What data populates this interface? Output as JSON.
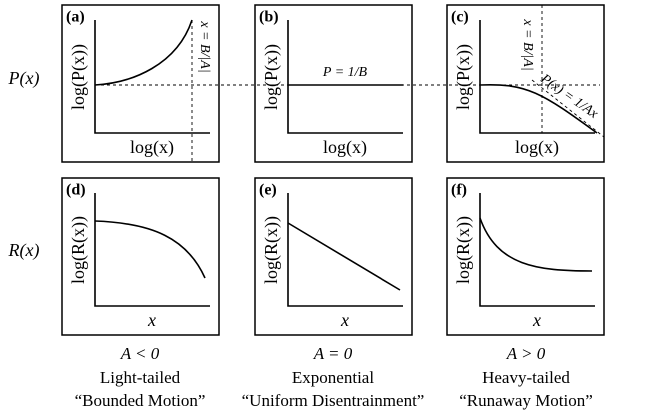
{
  "row_labels": [
    "P(x)",
    "R(x)"
  ],
  "panels": [
    {
      "label": "(a)",
      "ylabel": "log(P(x))",
      "xlabel": "log(x)",
      "annotations": [
        "x = B/|A|"
      ]
    },
    {
      "label": "(b)",
      "ylabel": "log(P(x))",
      "xlabel": "log(x)",
      "annotations": [
        "P = 1/B"
      ]
    },
    {
      "label": "(c)",
      "ylabel": "log(P(x))",
      "xlabel": "log(x)",
      "annotations": [
        "x = B/|A|",
        "P(x) = 1/Ax"
      ]
    },
    {
      "label": "(d)",
      "ylabel": "log(R(x))",
      "xlabel": "x",
      "annotations": []
    },
    {
      "label": "(e)",
      "ylabel": "log(R(x))",
      "xlabel": "x",
      "annotations": []
    },
    {
      "label": "(f)",
      "ylabel": "log(R(x))",
      "xlabel": "x",
      "annotations": []
    }
  ],
  "captions": [
    {
      "condition": "A < 0",
      "name": "Light-tailed",
      "motion": "“Bounded Motion”"
    },
    {
      "condition": "A = 0",
      "name": "Exponential",
      "motion": "“Uniform Disentrainment”"
    },
    {
      "condition": "A > 0",
      "name": "Heavy-tailed",
      "motion": "“Runaway Motion”"
    }
  ]
}
